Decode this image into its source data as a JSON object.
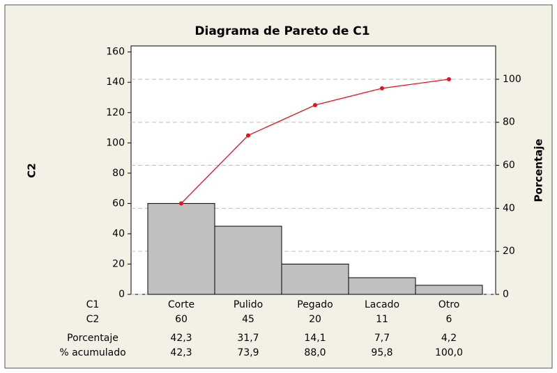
{
  "chart_data": {
    "type": "pareto",
    "title": "Diagrama de Pareto de C1",
    "ylabel": "C2",
    "y2label": "Porcentaje",
    "categories": [
      "Corte",
      "Pulido",
      "Pegado",
      "Lacado",
      "Otro"
    ],
    "series": [
      {
        "color": "#c0c0c0",
        "values": [
          60,
          45,
          20,
          11,
          6
        ]
      },
      {
        "color": "#e8101a",
        "axis": "y2",
        "values": [
          42.3,
          73.9,
          88.0,
          95.8,
          100.0
        ],
        "value_labels": [
          "42,3",
          "73,9",
          "88,0",
          "95,8",
          "100,0"
        ]
      }
    ],
    "ylim": [
      0,
      164
    ],
    "yticks": [
      0,
      20,
      40,
      60,
      80,
      100,
      120,
      140,
      160
    ],
    "y2lim": [
      0,
      115.5
    ],
    "y2ticks": [
      0,
      20,
      40,
      60,
      80,
      100
    ],
    "grid": true,
    "table": {
      "row_labels": [
        "C1",
        "C2",
        "Porcentaje",
        "% acumulado"
      ],
      "percent": {
        "values": [
          42.3,
          31.7,
          14.1,
          7.7,
          4.2
        ],
        "value_labels": [
          "42,3",
          "31,7",
          "14,1",
          "7,7",
          "4,2"
        ]
      }
    }
  }
}
